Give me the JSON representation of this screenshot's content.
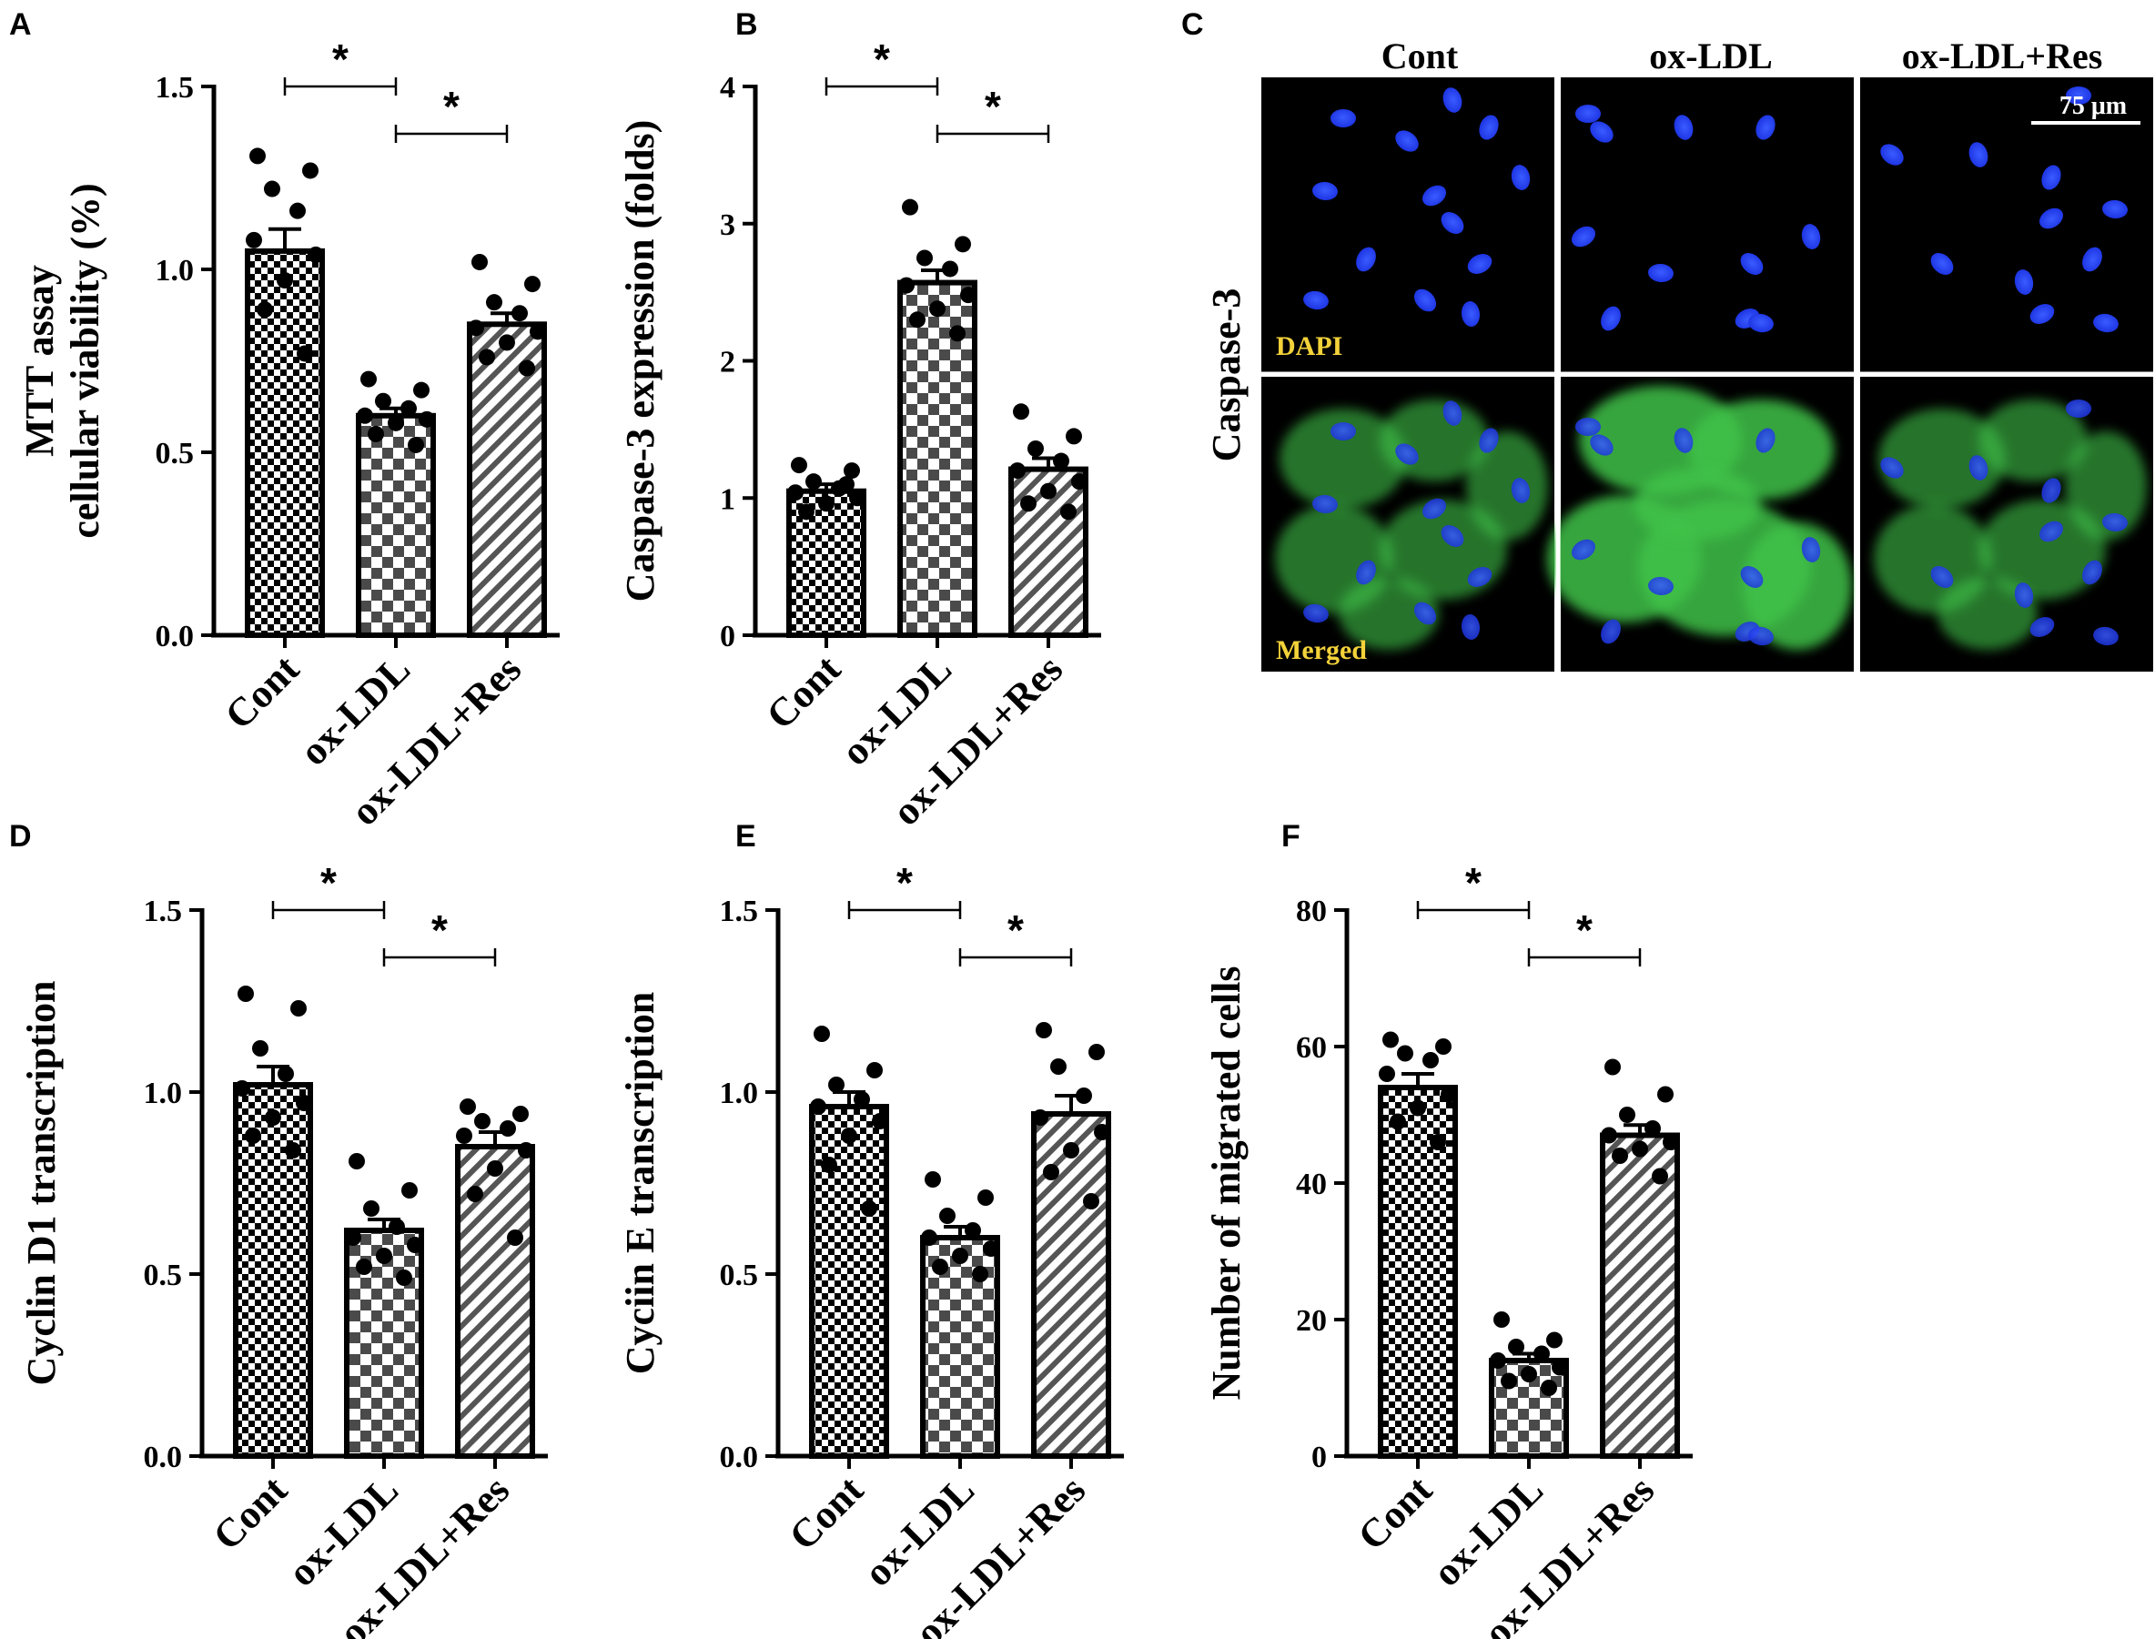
{
  "colors": {
    "nucleus": "#1f3cff",
    "cytoskeleton": "#3fc24a",
    "label_yellow": "#f3d23a",
    "bar_edge": "#000000"
  },
  "chart_data": [
    {
      "panel": "A",
      "type": "bar",
      "categories": [
        "Cont",
        "ox-LDL",
        "ox-LDL+Res"
      ],
      "ylabel_lines": [
        "MTT assay",
        "cellular viability (%)"
      ],
      "ylim": [
        0,
        1.5
      ],
      "yticks": [
        "0.0",
        "0.5",
        "1.0",
        "1.5"
      ],
      "ytick_values": [
        0,
        0.5,
        1.0,
        1.5
      ],
      "values": [
        1.05,
        0.6,
        0.85
      ],
      "errors": [
        0.06,
        0.02,
        0.03
      ],
      "points": [
        [
          1.31,
          1.27,
          1.22,
          1.16,
          1.08,
          1.04,
          0.97,
          0.89,
          0.77
        ],
        [
          0.7,
          0.67,
          0.64,
          0.62,
          0.6,
          0.59,
          0.58,
          0.55,
          0.52
        ],
        [
          1.02,
          0.96,
          0.91,
          0.88,
          0.84,
          0.83,
          0.8,
          0.76,
          0.73
        ]
      ],
      "significance": [
        {
          "from": 0,
          "to": 1,
          "label": "*"
        },
        {
          "from": 1,
          "to": 2,
          "label": "*"
        }
      ]
    },
    {
      "panel": "B",
      "type": "bar",
      "categories": [
        "Cont",
        "ox-LDL",
        "ox-LDL+Res"
      ],
      "ylabel_lines": [
        "Caspase-3 expression (folds)"
      ],
      "ylim": [
        0,
        4
      ],
      "yticks": [
        "0",
        "1",
        "2",
        "3",
        "4"
      ],
      "ytick_values": [
        0,
        1,
        2,
        3,
        4
      ],
      "values": [
        1.05,
        2.57,
        1.21
      ],
      "errors": [
        0.05,
        0.09,
        0.08
      ],
      "points": [
        [
          1.24,
          1.2,
          1.12,
          1.07,
          1.04,
          1.0,
          0.96,
          0.9,
          1.1
        ],
        [
          3.12,
          2.85,
          2.75,
          2.67,
          2.55,
          2.48,
          2.38,
          2.3,
          2.2
        ],
        [
          1.63,
          1.45,
          1.36,
          1.27,
          1.2,
          1.12,
          1.05,
          0.96,
          0.9
        ]
      ],
      "significance": [
        {
          "from": 0,
          "to": 1,
          "label": "*"
        },
        {
          "from": 1,
          "to": 2,
          "label": "*"
        }
      ]
    },
    {
      "panel": "D",
      "type": "bar",
      "categories": [
        "Cont",
        "ox-LDL",
        "ox-LDL+Res"
      ],
      "ylabel_lines": [
        "Cyclin D1 transcription"
      ],
      "ylim": [
        0,
        1.5
      ],
      "yticks": [
        "0.0",
        "0.5",
        "1.0",
        "1.5"
      ],
      "ytick_values": [
        0,
        0.5,
        1.0,
        1.5
      ],
      "values": [
        1.02,
        0.62,
        0.85
      ],
      "errors": [
        0.05,
        0.03,
        0.04
      ],
      "points": [
        [
          1.27,
          1.23,
          1.12,
          1.05,
          1.01,
          0.97,
          0.93,
          0.88,
          0.84
        ],
        [
          0.81,
          0.73,
          0.68,
          0.63,
          0.6,
          0.58,
          0.55,
          0.52,
          0.49
        ],
        [
          0.96,
          0.94,
          0.92,
          0.9,
          0.88,
          0.84,
          0.79,
          0.72,
          0.6
        ]
      ],
      "significance": [
        {
          "from": 0,
          "to": 1,
          "label": "*"
        },
        {
          "from": 1,
          "to": 2,
          "label": "*"
        }
      ]
    },
    {
      "panel": "E",
      "type": "bar",
      "categories": [
        "Cont",
        "ox-LDL",
        "ox-LDL+Res"
      ],
      "ylabel_lines": [
        "Cyciin E transcription"
      ],
      "ylim": [
        0,
        1.5
      ],
      "yticks": [
        "0.0",
        "0.5",
        "1.0",
        "1.5"
      ],
      "ytick_values": [
        0,
        0.5,
        1.0,
        1.5
      ],
      "values": [
        0.96,
        0.6,
        0.94
      ],
      "errors": [
        0.04,
        0.03,
        0.05
      ],
      "points": [
        [
          1.16,
          1.06,
          1.02,
          0.98,
          0.96,
          0.92,
          0.88,
          0.8,
          0.68
        ],
        [
          0.76,
          0.71,
          0.66,
          0.62,
          0.6,
          0.57,
          0.55,
          0.52,
          0.5
        ],
        [
          1.17,
          1.11,
          1.07,
          0.99,
          0.93,
          0.89,
          0.84,
          0.78,
          0.7
        ]
      ],
      "significance": [
        {
          "from": 0,
          "to": 1,
          "label": "*"
        },
        {
          "from": 1,
          "to": 2,
          "label": "*"
        }
      ]
    },
    {
      "panel": "F",
      "type": "bar",
      "categories": [
        "Cont",
        "ox-LDL",
        "ox-LDL+Res"
      ],
      "ylabel_lines": [
        "Number of migrated cells"
      ],
      "ylim": [
        0,
        80
      ],
      "yticks": [
        "0",
        "20",
        "40",
        "60",
        "80"
      ],
      "ytick_values": [
        0,
        20,
        40,
        60,
        80
      ],
      "values": [
        54,
        14,
        47
      ],
      "errors": [
        2,
        1,
        1.5
      ],
      "points": [
        [
          61,
          60,
          59,
          58,
          56,
          53,
          51,
          49,
          46
        ],
        [
          20,
          17,
          16,
          15,
          14,
          13,
          12,
          11,
          10
        ],
        [
          57,
          53,
          50,
          48,
          47,
          46,
          45,
          44,
          41
        ]
      ],
      "significance": [
        {
          "from": 0,
          "to": 1,
          "label": "*"
        },
        {
          "from": 1,
          "to": 2,
          "label": "*"
        }
      ]
    }
  ],
  "microscopy": {
    "panel": "C",
    "row_label": "Caspase-3",
    "columns": [
      "Cont",
      "ox-LDL",
      "ox-LDL+Res"
    ],
    "rows": [
      "DAPI",
      "Merged"
    ],
    "scale_bar": "75 μm"
  }
}
